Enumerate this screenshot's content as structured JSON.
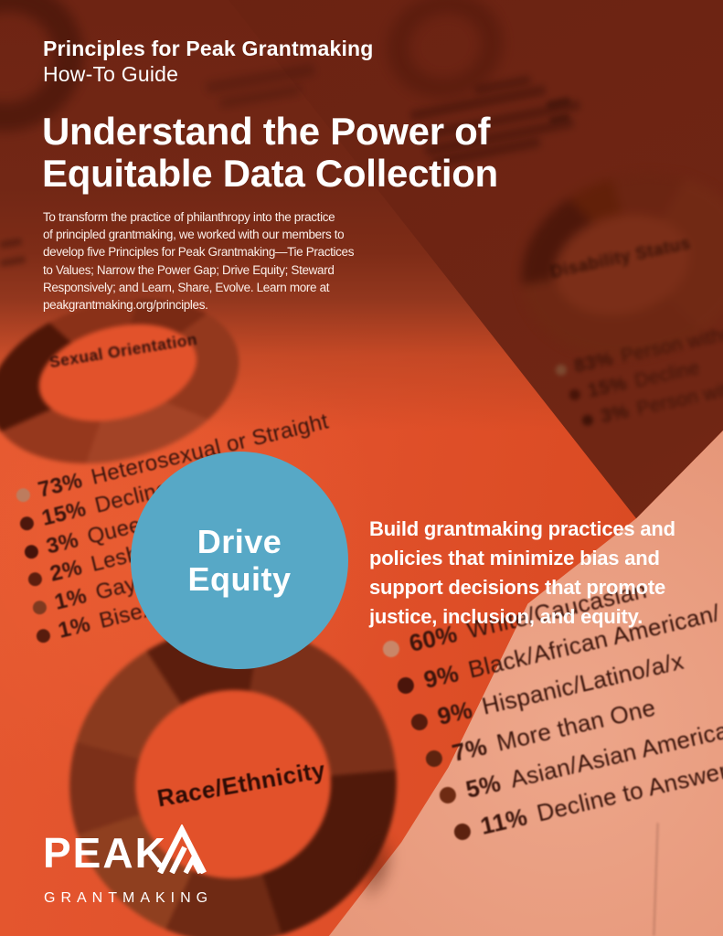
{
  "header": {
    "eyebrow": "Principles for Peak Grantmaking",
    "subtitle": "How-To Guide",
    "title_line1": "Understand the Power of",
    "title_line2": "Equitable Data Collection",
    "intro_lines": [
      "To transform the practice of philanthropy into the practice",
      "of principled grantmaking, we worked with our members to",
      "develop five Principles for Peak Grantmaking—Tie Practices",
      "to Values; Narrow the Power Gap; Drive Equity; Steward",
      "Responsively; and Learn, Share, Evolve. Learn more at",
      "peakgrantmaking.org/principles."
    ]
  },
  "badge": {
    "line1": "Drive",
    "line2": "Equity",
    "bg_color": "#57a8c6",
    "text_color": "#ffffff"
  },
  "principle_lines": [
    "Build grantmaking practices and",
    "policies that minimize bias and",
    "support decisions that promote",
    "justice, inclusion, and equity."
  ],
  "logo": {
    "word": "PEAK",
    "subword": "GRANTMAKING"
  },
  "colors": {
    "orange": "#e0502a",
    "dark_red": "#6e2413",
    "salmon": "#e59476",
    "blue": "#57a8c6"
  },
  "chart_data": [
    {
      "type": "pie",
      "title": "Sexual Orientation",
      "categories": [
        "Heterosexual or Straight",
        "Decline to Answer",
        "Queer",
        "Lesbian",
        "Gay",
        "Bisexual"
      ],
      "values": [
        73,
        15,
        3,
        2,
        1,
        1
      ],
      "legend": [
        {
          "pct": "73%",
          "label": "Heterosexual or Straight",
          "dot_color": "#bd7c5e"
        },
        {
          "pct": "15%",
          "label": "Decline to Answer",
          "dot_color": "#4d170c"
        },
        {
          "pct": "3%",
          "label": "Queer",
          "dot_color": "#45130a"
        },
        {
          "pct": "2%",
          "label": "Lesbian",
          "dot_color": "#5d1e0e"
        },
        {
          "pct": "1%",
          "label": "Gay",
          "dot_color": "#7f3a20"
        },
        {
          "pct": "1%",
          "label": "Bisexual",
          "dot_color": "#571c0d"
        }
      ]
    },
    {
      "type": "pie",
      "title": "Disability Status",
      "categories": [
        "Person without disability",
        "Decline",
        "Person with disability"
      ],
      "values": [
        83,
        15,
        3
      ],
      "legend": [
        {
          "pct": "83%",
          "label": "Person without disability",
          "dot_color": "#7c4930"
        },
        {
          "pct": "15%",
          "label": "Decline",
          "dot_color": "#471408"
        },
        {
          "pct": "3%",
          "label": "Person with disability",
          "dot_color": "#3f1207"
        }
      ]
    },
    {
      "type": "pie",
      "title": "Race/Ethnicity",
      "categories": [
        "White/Caucasian",
        "Black/African American/",
        "Hispanic/Latino/a/x",
        "More than One",
        "Asian/Asian American",
        "Decline to Answer"
      ],
      "values": [
        60,
        9,
        9,
        7,
        5,
        11
      ],
      "legend": [
        {
          "pct": "60%",
          "label": "White/Caucasian",
          "dot_color": "#c98668"
        },
        {
          "pct": "9%",
          "label": "Black/African American/",
          "dot_color": "#4a150b"
        },
        {
          "pct": "9%",
          "label": "Hispanic/Latino/a/x",
          "dot_color": "#561b0c"
        },
        {
          "pct": "7%",
          "label": "More than One",
          "dot_color": "#5e230f"
        },
        {
          "pct": "5%",
          "label": "Asian/Asian American",
          "dot_color": "#6e2b13"
        },
        {
          "pct": "11%",
          "label": "Decline to Answer",
          "dot_color": "#5c220f"
        }
      ]
    }
  ]
}
